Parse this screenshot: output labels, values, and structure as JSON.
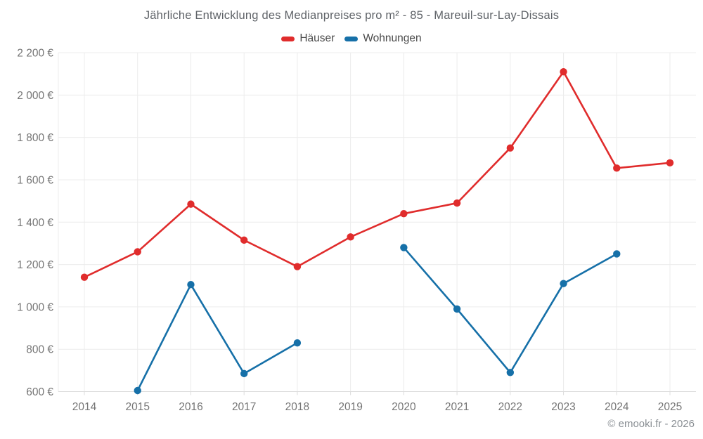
{
  "title": "Jährliche Entwicklung des Medianpreises pro m² - 85 - Mareuil-sur-Lay-Dissais",
  "footer": "© emooki.fr - 2026",
  "colors": {
    "hauser": "#e02c2c",
    "wohnungen": "#1670a8",
    "grid": "#ececec",
    "axis_line": "#dcdcdc",
    "tick_label": "#757575"
  },
  "chart_data": {
    "type": "line",
    "title": "Jährliche Entwicklung des Medianpreises pro m² - 85 - Mareuil-sur-Lay-Dissais",
    "categories": [
      "2014",
      "2015",
      "2016",
      "2017",
      "2018",
      "2019",
      "2020",
      "2021",
      "2022",
      "2023",
      "2024",
      "2025"
    ],
    "series": [
      {
        "name": "Häuser",
        "color": "#e02c2c",
        "values": [
          1140,
          1260,
          1485,
          1315,
          1190,
          1330,
          1440,
          1490,
          1750,
          2110,
          1655,
          1680
        ]
      },
      {
        "name": "Wohnungen",
        "color": "#1670a8",
        "values": [
          null,
          605,
          1105,
          685,
          830,
          null,
          1280,
          990,
          690,
          1110,
          1250,
          null
        ]
      }
    ],
    "ylim": [
      600,
      2200
    ],
    "yticks": [
      {
        "value": 600,
        "label": "600 €"
      },
      {
        "value": 800,
        "label": "800 €"
      },
      {
        "value": 1000,
        "label": "1 000 €"
      },
      {
        "value": 1200,
        "label": "1 200 €"
      },
      {
        "value": 1400,
        "label": "1 400 €"
      },
      {
        "value": 1600,
        "label": "1 600 €"
      },
      {
        "value": 1800,
        "label": "1 800 €"
      },
      {
        "value": 2000,
        "label": "2 000 €"
      },
      {
        "value": 2200,
        "label": "2 200 €"
      }
    ],
    "xlabel": "",
    "ylabel": "",
    "grid": true,
    "legend_position": "top",
    "annotation": "© emooki.fr - 2026"
  }
}
